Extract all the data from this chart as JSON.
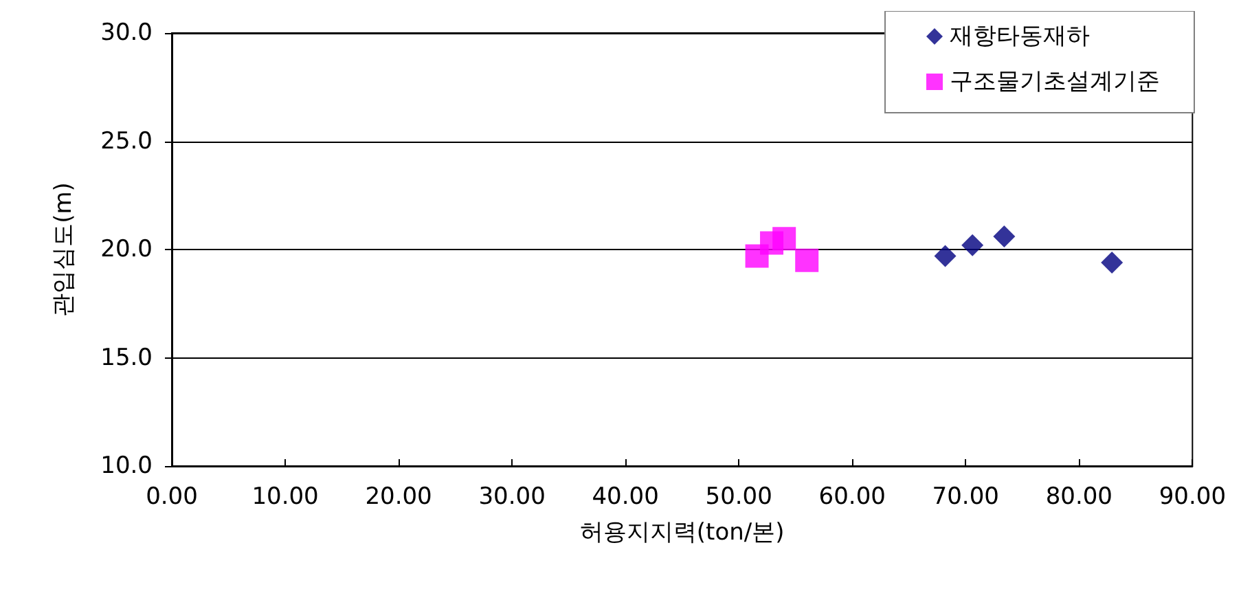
{
  "chart_data": {
    "type": "scatter",
    "xlabel": "허용지지력(ton/본)",
    "ylabel": "관입심도(m)",
    "xlim": [
      0,
      90
    ],
    "xticks": [
      {
        "value": 0,
        "label": "0.00"
      },
      {
        "value": 10,
        "label": "10.00"
      },
      {
        "value": 20,
        "label": "20.00"
      },
      {
        "value": 30,
        "label": "30.00"
      },
      {
        "value": 40,
        "label": "40.00"
      },
      {
        "value": 50,
        "label": "50.00"
      },
      {
        "value": 60,
        "label": "60.00"
      },
      {
        "value": 70,
        "label": "70.00"
      },
      {
        "value": 80,
        "label": "80.00"
      },
      {
        "value": 90,
        "label": "90.00"
      }
    ],
    "ylim": [
      10,
      30
    ],
    "yticks": [
      {
        "value": 10,
        "label": "10.0"
      },
      {
        "value": 15,
        "label": "15.0"
      },
      {
        "value": 20,
        "label": "20.0"
      },
      {
        "value": 25,
        "label": "25.0"
      },
      {
        "value": 30,
        "label": "30.0"
      }
    ],
    "grid": "y",
    "legend": "top right",
    "series": [
      {
        "name": "재항타동재하",
        "color": "#000080",
        "marker": "diamond",
        "x": [
          68.2,
          70.6,
          73.4,
          82.9
        ],
        "values": [
          19.7,
          20.2,
          20.6,
          19.4
        ]
      },
      {
        "name": "구조물기초설계기준",
        "color": "#ff00ff",
        "marker": "square",
        "x": [
          51.6,
          52.9,
          54.0,
          56.0
        ],
        "values": [
          19.7,
          20.3,
          20.5,
          19.5
        ]
      }
    ]
  }
}
